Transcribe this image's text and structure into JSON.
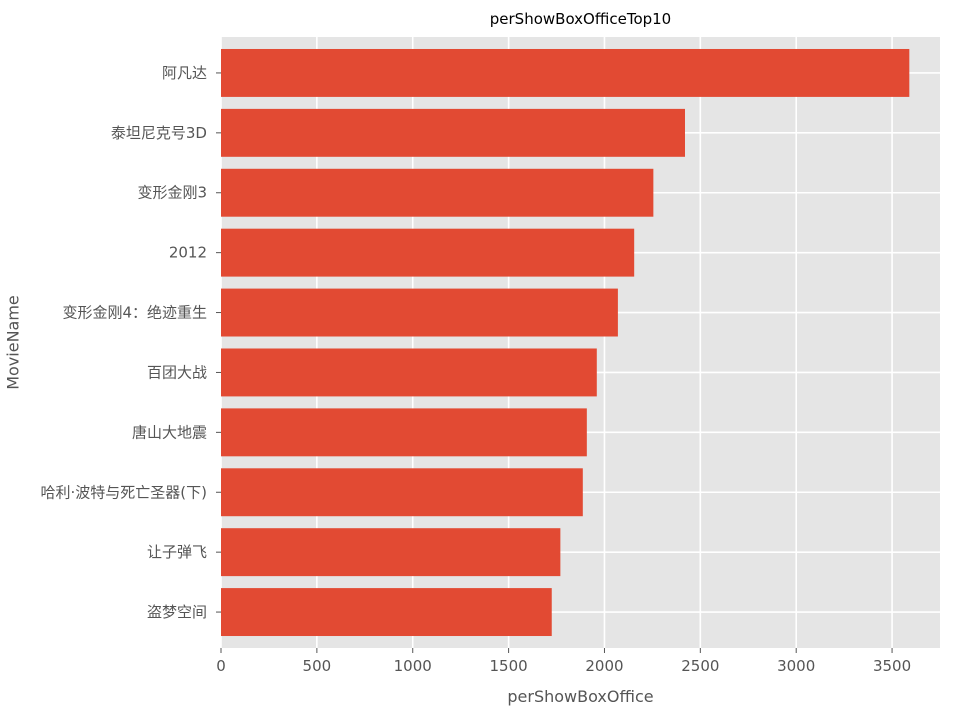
{
  "chart_data": {
    "type": "bar",
    "orientation": "horizontal",
    "title": "perShowBoxOfficeTop10",
    "xlabel": "perShowBoxOffice",
    "ylabel": "MovieName",
    "categories": [
      "阿凡达",
      "泰坦尼克号3D",
      "变形金刚3",
      "2012",
      "变形金刚4：绝迹重生",
      "百团大战",
      "唐山大地震",
      "哈利·波特与死亡圣器(下)",
      "让子弹飞",
      "盗梦空间"
    ],
    "values": [
      3590,
      2420,
      2255,
      2155,
      2070,
      1960,
      1908,
      1887,
      1770,
      1725
    ],
    "xlim": [
      0,
      3750
    ],
    "xticks": [
      0,
      500,
      1000,
      1500,
      2000,
      2500,
      3000,
      3500
    ],
    "grid": true,
    "colors": {
      "bar": "#E24A33",
      "background": "#E5E5E5",
      "grid": "#FFFFFF",
      "text": "#555555",
      "title": "#000000"
    }
  }
}
